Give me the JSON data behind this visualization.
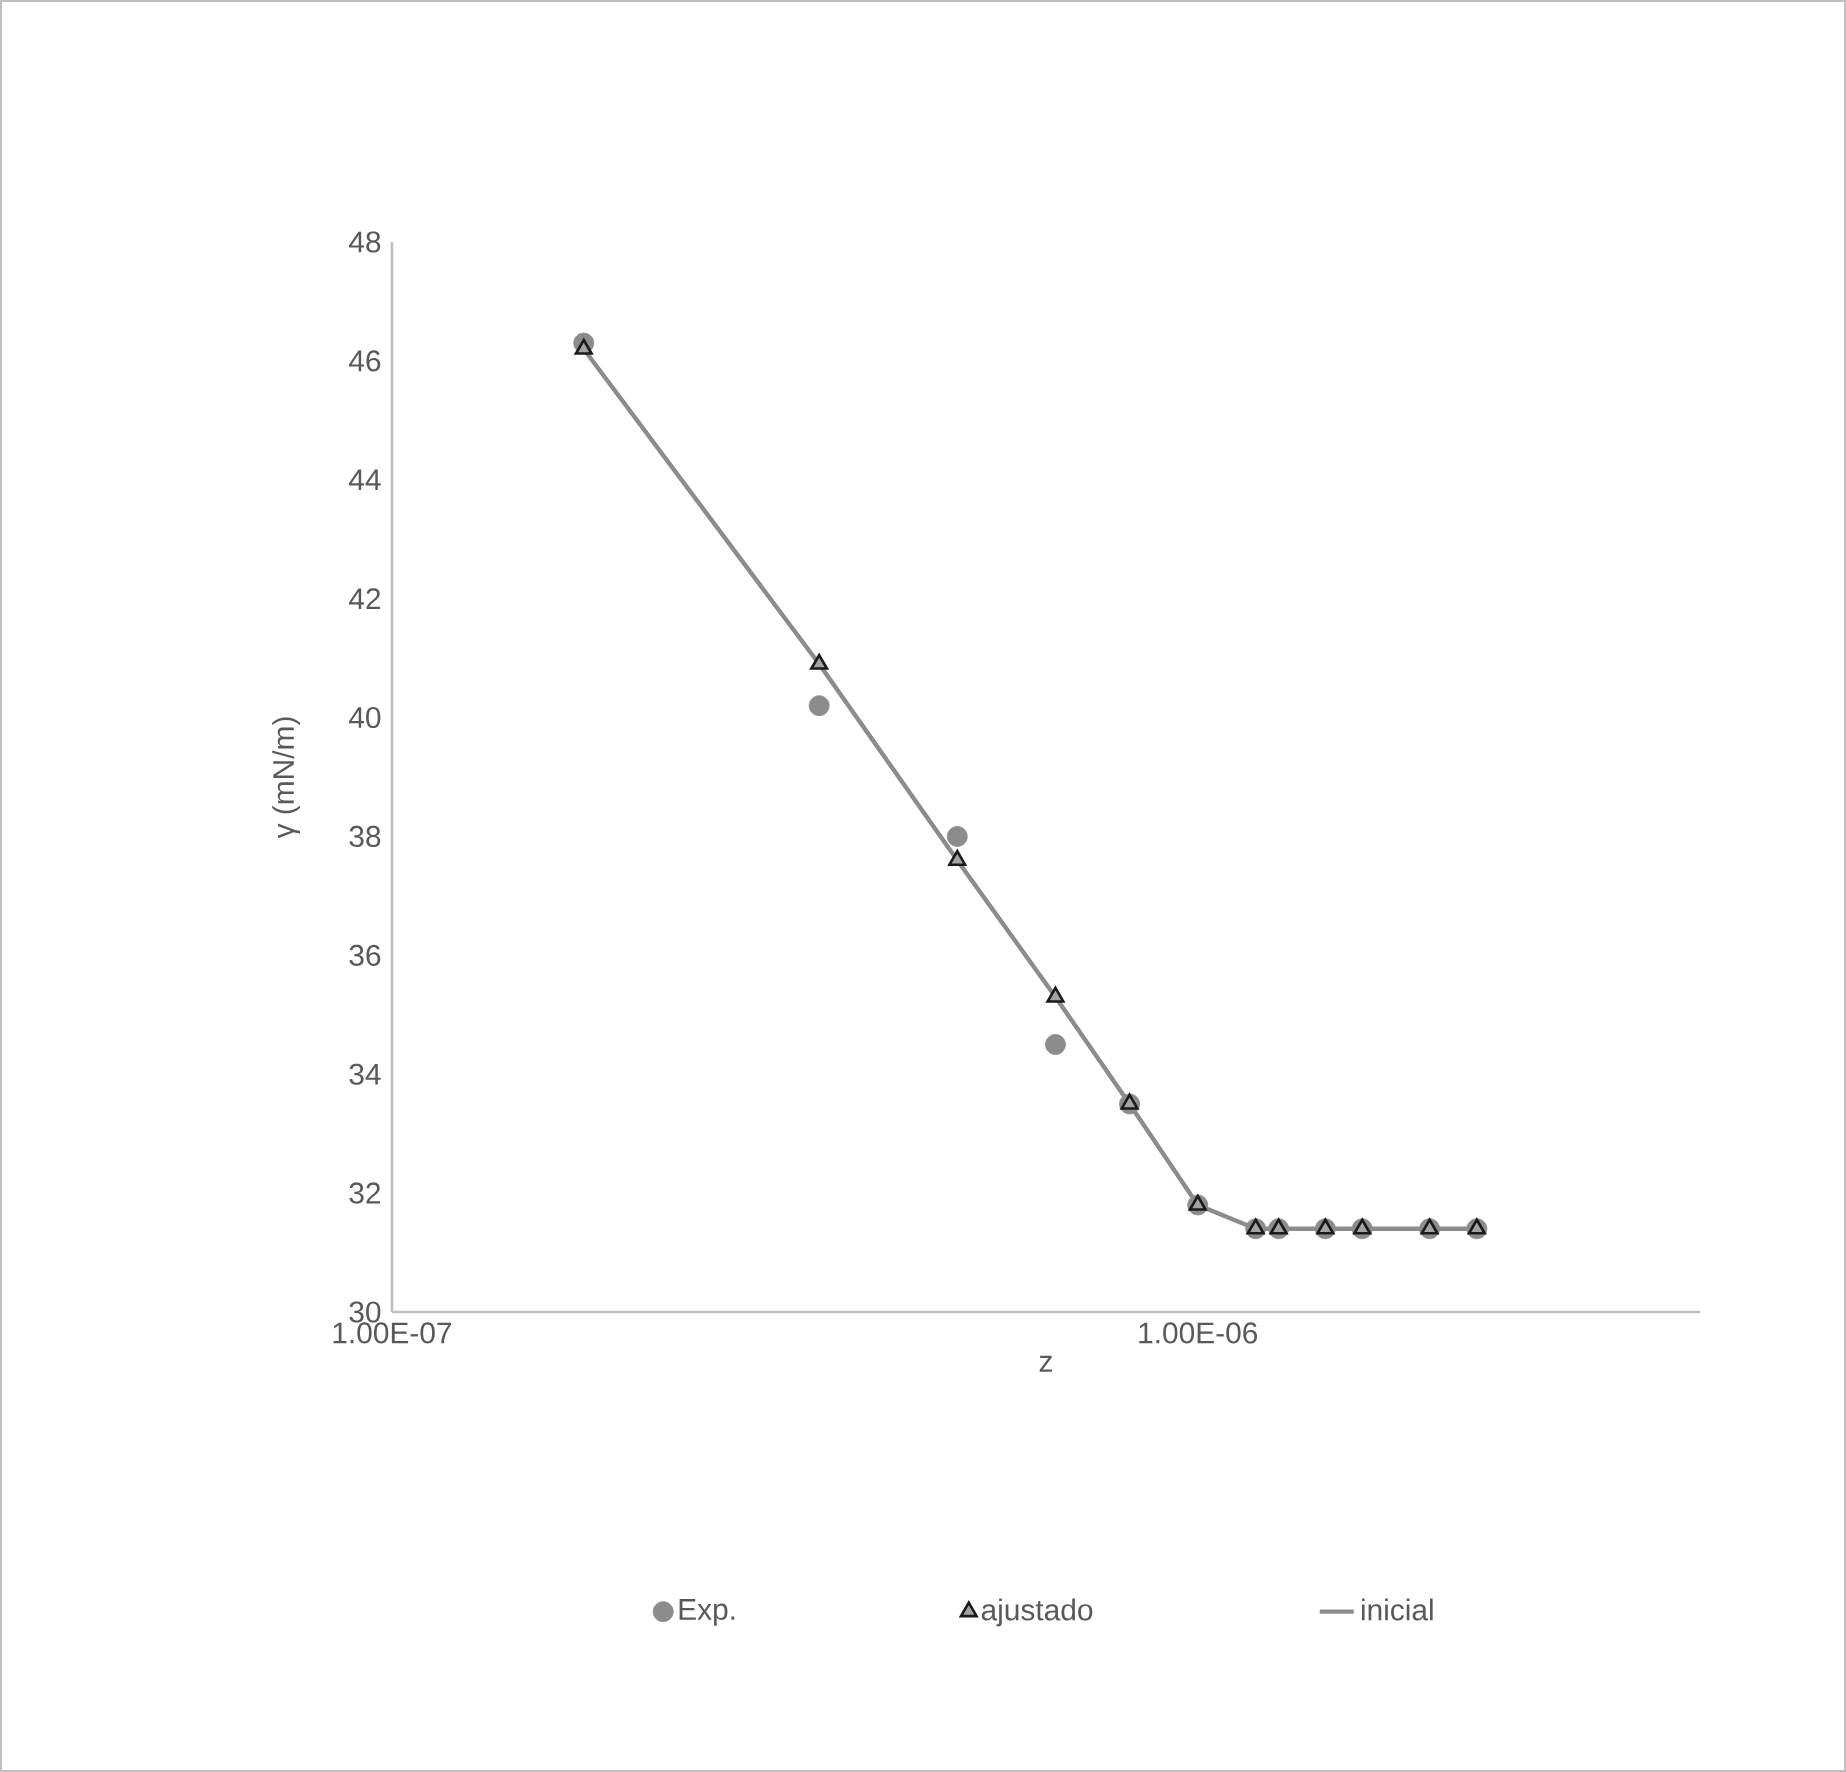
{
  "chart_data": {
    "type": "scatter",
    "xlabel": "z",
    "ylabel": "γ (mN/m)",
    "log": "x",
    "xlim": [
      1e-07,
      4.2e-06
    ],
    "xticks": [
      {
        "value": 1e-07,
        "label": "1.00E-07"
      },
      {
        "value": 1e-06,
        "label": "1.00E-06"
      }
    ],
    "ylim": [
      30,
      48
    ],
    "yticks": [
      30,
      32,
      34,
      36,
      38,
      40,
      42,
      44,
      46,
      48
    ],
    "grid": false,
    "legend": "bottom",
    "series": [
      {
        "name": "Exp.",
        "marker": "circle",
        "color": "#8c8c8c",
        "x": [
          1.73e-07,
          3.39e-07,
          5.03e-07,
          6.66e-07,
          8.23e-07,
          1e-06,
          1.18e-06,
          1.26e-06,
          1.44e-06,
          1.6e-06,
          1.94e-06,
          2.22e-06
        ],
        "values": [
          46.3,
          40.2,
          38.0,
          34.5,
          33.5,
          31.8,
          31.4,
          31.4,
          31.4,
          31.4,
          31.4,
          31.4
        ]
      },
      {
        "name": "ajustado",
        "marker": "triangle",
        "color": "#1a1a1a",
        "x": [
          1.73e-07,
          3.39e-07,
          5.03e-07,
          6.66e-07,
          8.23e-07,
          1e-06,
          1.18e-06,
          1.26e-06,
          1.44e-06,
          1.6e-06,
          1.94e-06,
          2.22e-06
        ],
        "values": [
          46.2,
          40.9,
          37.6,
          35.3,
          33.5,
          31.8,
          31.4,
          31.4,
          31.4,
          31.4,
          31.4,
          31.4
        ]
      },
      {
        "name": "inicial",
        "type": "line",
        "marker": "none",
        "color": "#8c8c8c",
        "x": [
          1.73e-07,
          3.39e-07,
          5.03e-07,
          6.66e-07,
          8.23e-07,
          1e-06,
          1.18e-06,
          1.26e-06,
          1.44e-06,
          1.6e-06,
          1.94e-06,
          2.22e-06
        ],
        "values": [
          46.2,
          40.9,
          37.6,
          35.3,
          33.5,
          31.8,
          31.4,
          31.4,
          31.4,
          31.4,
          31.4,
          31.4
        ]
      }
    ]
  }
}
